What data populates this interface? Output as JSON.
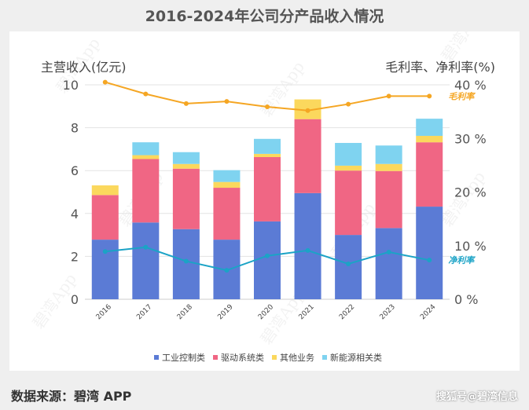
{
  "title": "2016-2024年公司分产品收入情况",
  "source": "数据来源：碧湾 APP",
  "credit": "搜狐号@碧湾信息",
  "watermark": "碧湾App",
  "chart_data": {
    "type": "bar",
    "stacked": true,
    "categories": [
      "2016",
      "2017",
      "2018",
      "2019",
      "2020",
      "2021",
      "2022",
      "2023",
      "2024"
    ],
    "ylabel": "主营收入(亿元)",
    "ylim": [
      0,
      10
    ],
    "yticks": [
      "0",
      "2",
      "4",
      "6",
      "8",
      "10"
    ],
    "y2label": "毛利率、净利率(%)",
    "y2lim": [
      0,
      40
    ],
    "y2ticks": [
      "0 %",
      "10 %",
      "20 %",
      "30 %",
      "40 %"
    ],
    "grid": true,
    "legend_position": "bottom",
    "series": [
      {
        "name": "工业控制类",
        "color": "#5b7bd5",
        "values": [
          2.78,
          3.58,
          3.27,
          2.78,
          3.63,
          4.95,
          3.0,
          3.32,
          4.32
        ]
      },
      {
        "name": "驱动系统类",
        "color": "#f06684",
        "values": [
          2.08,
          2.96,
          2.82,
          2.42,
          3.0,
          3.45,
          3.0,
          2.66,
          3.0
        ]
      },
      {
        "name": "其他业务",
        "color": "#fbd85d",
        "values": [
          0.45,
          0.18,
          0.22,
          0.27,
          0.15,
          0.92,
          0.23,
          0.33,
          0.3
        ]
      },
      {
        "name": "新能源相关类",
        "color": "#7fd3f0",
        "values": [
          0,
          0.6,
          0.55,
          0.55,
          0.7,
          0,
          1.06,
          0.86,
          0.8
        ]
      }
    ],
    "lines": [
      {
        "name": "毛利率",
        "label": "毛利率",
        "color": "#f5a623",
        "axis": "right",
        "values": [
          40.5,
          38.3,
          36.5,
          36.9,
          35.9,
          35.2,
          36.4,
          37.9,
          37.9
        ]
      },
      {
        "name": "净利率",
        "label": "净利率",
        "color": "#1ba3c6",
        "axis": "right",
        "values": [
          8.9,
          9.7,
          7.1,
          5.4,
          8.1,
          9.1,
          6.6,
          8.8,
          7.3
        ]
      }
    ]
  }
}
